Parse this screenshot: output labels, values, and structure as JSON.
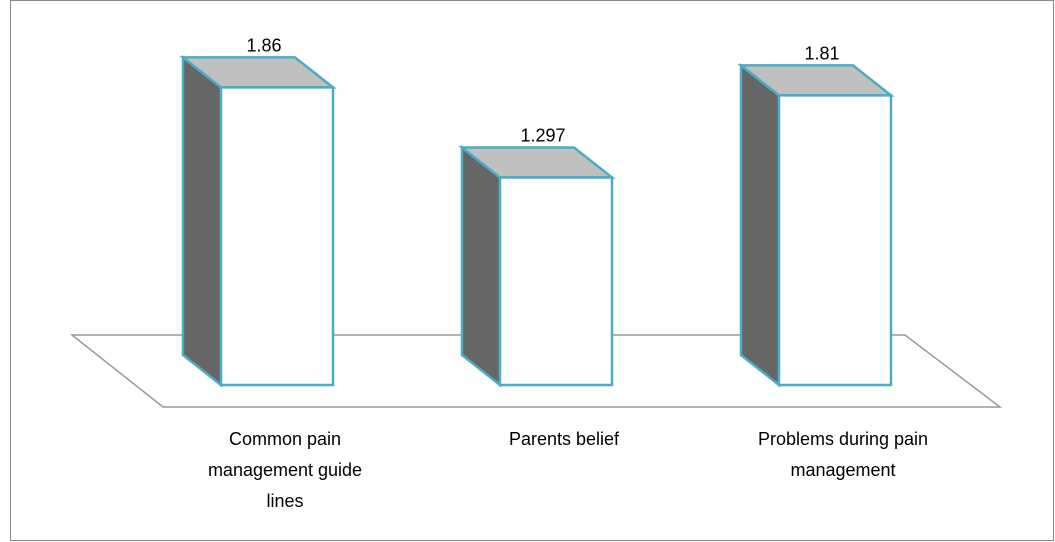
{
  "chart_data": {
    "type": "bar3d",
    "categories": [
      "Common pain management guide lines",
      "Parents belief",
      "Problems during pain management"
    ],
    "values": [
      1.86,
      1.297,
      1.81
    ],
    "color": "#4bacc6"
  }
}
